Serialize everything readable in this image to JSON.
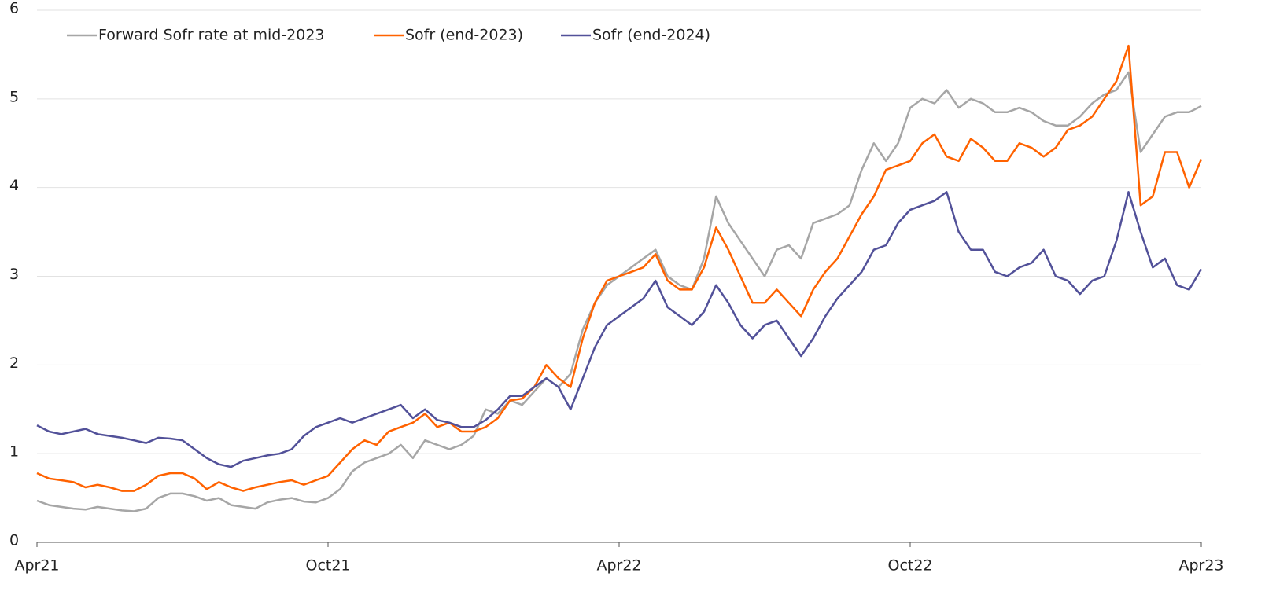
{
  "chart_data": {
    "type": "line",
    "categories": [
      "Apr21",
      null,
      null,
      null,
      null,
      null,
      null,
      null,
      null,
      null,
      null,
      null,
      null,
      null,
      null,
      null,
      null,
      null,
      null,
      null,
      null,
      null,
      null,
      null,
      "Oct21",
      null,
      null,
      null,
      null,
      null,
      null,
      null,
      null,
      null,
      null,
      null,
      null,
      null,
      null,
      null,
      null,
      null,
      null,
      null,
      null,
      null,
      null,
      null,
      "Apr22",
      null,
      null,
      null,
      null,
      null,
      null,
      null,
      null,
      null,
      null,
      null,
      null,
      null,
      null,
      null,
      null,
      null,
      null,
      null,
      null,
      null,
      null,
      null,
      "Oct22",
      null,
      null,
      null,
      null,
      null,
      null,
      null,
      null,
      null,
      null,
      null,
      null,
      null,
      null,
      null,
      null,
      null,
      null,
      null,
      null,
      null,
      null,
      null,
      "Apr23"
    ],
    "series": [
      {
        "name": "Forward Sofr rate at mid-2023",
        "color": "#a6a6a6",
        "values": [
          0.47,
          0.42,
          0.4,
          0.38,
          0.37,
          0.4,
          0.38,
          0.36,
          0.35,
          0.38,
          0.5,
          0.55,
          0.55,
          0.52,
          0.47,
          0.5,
          0.42,
          0.4,
          0.38,
          0.45,
          0.48,
          0.5,
          0.46,
          0.45,
          0.5,
          0.6,
          0.8,
          0.9,
          0.95,
          1.0,
          1.1,
          0.95,
          1.15,
          1.1,
          1.05,
          1.1,
          1.2,
          1.5,
          1.45,
          1.6,
          1.55,
          1.7,
          1.85,
          1.75,
          1.9,
          2.4,
          2.7,
          2.9,
          3.0,
          3.1,
          3.2,
          3.3,
          3.0,
          2.9,
          2.85,
          3.2,
          3.9,
          3.6,
          3.4,
          3.2,
          3.0,
          3.3,
          3.35,
          3.2,
          3.6,
          3.65,
          3.7,
          3.8,
          4.2,
          4.5,
          4.3,
          4.5,
          4.9,
          5.0,
          4.95,
          5.1,
          4.9,
          5.0,
          4.95,
          4.85,
          4.85,
          4.9,
          4.85,
          4.75,
          4.7,
          4.7,
          4.8,
          4.95,
          5.05,
          5.1,
          5.3,
          4.4,
          4.6,
          4.8,
          4.85,
          4.85,
          4.92
        ]
      },
      {
        "name": "Sofr (end-2023)",
        "color": "#ff6200",
        "values": [
          0.78,
          0.72,
          0.7,
          0.68,
          0.62,
          0.65,
          0.62,
          0.58,
          0.58,
          0.65,
          0.75,
          0.78,
          0.78,
          0.72,
          0.6,
          0.68,
          0.62,
          0.58,
          0.62,
          0.65,
          0.68,
          0.7,
          0.65,
          0.7,
          0.75,
          0.9,
          1.05,
          1.15,
          1.1,
          1.25,
          1.3,
          1.35,
          1.45,
          1.3,
          1.35,
          1.25,
          1.25,
          1.3,
          1.4,
          1.6,
          1.62,
          1.75,
          2.0,
          1.85,
          1.75,
          2.3,
          2.7,
          2.95,
          3.0,
          3.05,
          3.1,
          3.25,
          2.95,
          2.85,
          2.85,
          3.1,
          3.55,
          3.3,
          3.0,
          2.7,
          2.7,
          2.85,
          2.7,
          2.55,
          2.85,
          3.05,
          3.2,
          3.45,
          3.7,
          3.9,
          4.2,
          4.25,
          4.3,
          4.5,
          4.6,
          4.35,
          4.3,
          4.55,
          4.45,
          4.3,
          4.3,
          4.5,
          4.45,
          4.35,
          4.45,
          4.65,
          4.7,
          4.8,
          5.0,
          5.2,
          5.6,
          3.8,
          3.9,
          4.4,
          4.4,
          4.0,
          4.32
        ]
      },
      {
        "name": "Sofr (end-2024)",
        "color": "#525199",
        "values": [
          1.32,
          1.25,
          1.22,
          1.25,
          1.28,
          1.22,
          1.2,
          1.18,
          1.15,
          1.12,
          1.18,
          1.17,
          1.15,
          1.05,
          0.95,
          0.88,
          0.85,
          0.92,
          0.95,
          0.98,
          1.0,
          1.05,
          1.2,
          1.3,
          1.35,
          1.4,
          1.35,
          1.4,
          1.45,
          1.5,
          1.55,
          1.4,
          1.5,
          1.38,
          1.35,
          1.3,
          1.3,
          1.38,
          1.5,
          1.65,
          1.65,
          1.75,
          1.85,
          1.75,
          1.5,
          1.85,
          2.2,
          2.45,
          2.55,
          2.65,
          2.75,
          2.95,
          2.65,
          2.55,
          2.45,
          2.6,
          2.9,
          2.7,
          2.45,
          2.3,
          2.45,
          2.5,
          2.3,
          2.1,
          2.3,
          2.55,
          2.75,
          2.9,
          3.05,
          3.3,
          3.35,
          3.6,
          3.75,
          3.8,
          3.85,
          3.95,
          3.5,
          3.3,
          3.3,
          3.05,
          3.0,
          3.1,
          3.15,
          3.3,
          3.0,
          2.95,
          2.8,
          2.95,
          3.0,
          3.4,
          3.95,
          3.5,
          3.1,
          3.2,
          2.9,
          2.85,
          3.08
        ]
      }
    ],
    "ylim": [
      0,
      6
    ],
    "yticks": [
      0,
      1,
      2,
      3,
      4,
      5,
      6
    ],
    "grid": true,
    "legend": "top-left"
  }
}
